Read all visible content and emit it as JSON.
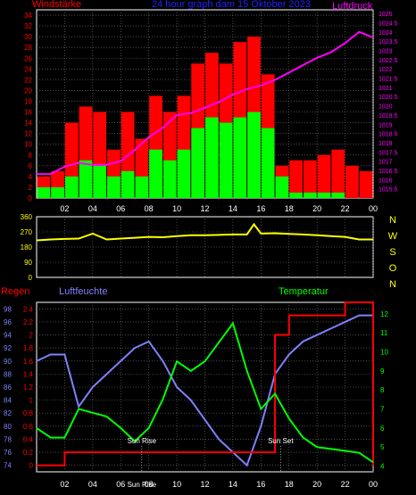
{
  "chart_data": [
    {
      "type": "bar",
      "title": "24 hour graph dam 15 Oktober 2023",
      "left_label": "Windstärke",
      "right_label": "Luftdruck",
      "x_ticks": [
        "02",
        "04",
        "06",
        "08",
        "10",
        "12",
        "14",
        "16",
        "18",
        "20",
        "22",
        "00"
      ],
      "y_left_ticks": [
        "0",
        "2",
        "4",
        "6",
        "8",
        "10",
        "12",
        "14",
        "16",
        "18",
        "20",
        "22",
        "24",
        "26",
        "28",
        "30",
        "32",
        "34"
      ],
      "y_right_ticks": [
        "1015.5",
        "1016",
        "1016.5",
        "1017",
        "1017.5",
        "1018",
        "1018.5",
        "1019",
        "1019.5",
        "1020",
        "1020.5",
        "1021",
        "1021.5",
        "1022",
        "1022.5",
        "1023",
        "1023.5",
        "1024",
        "1024.5",
        "1025"
      ],
      "ylim_left": [
        0,
        35
      ],
      "ylim_right": [
        1015,
        1025.2
      ],
      "colors": {
        "gust": "#ff0000",
        "wind": "#00ff00",
        "pressure": "#ff00ff"
      },
      "series": [
        {
          "name": "Windstärke",
          "type": "bar",
          "x": [
            0,
            1,
            2,
            3,
            4,
            5,
            6,
            7,
            8,
            9,
            10,
            11,
            12,
            13,
            14,
            15,
            16,
            17,
            18,
            19,
            20,
            21,
            22,
            23
          ],
          "gust": [
            4,
            5,
            14,
            17,
            16,
            9,
            16,
            11,
            19,
            16,
            19,
            25,
            27,
            25,
            29,
            30,
            23,
            6,
            7,
            7,
            8,
            9,
            6,
            5
          ],
          "wind": [
            2,
            2,
            4,
            7,
            6,
            4,
            5,
            4,
            9,
            7,
            9,
            13,
            15,
            14,
            15,
            16,
            13,
            4,
            1,
            1,
            1,
            1,
            0,
            0
          ]
        },
        {
          "name": "Luftdruck",
          "type": "line",
          "x": [
            0,
            1,
            2,
            3,
            4,
            5,
            6,
            7,
            8,
            9,
            10,
            11,
            12,
            13,
            14,
            15,
            16,
            17,
            18,
            19,
            20,
            21,
            22,
            23,
            24
          ],
          "values": [
            1016.3,
            1016.3,
            1016.7,
            1016.9,
            1016.8,
            1016.8,
            1017.0,
            1017.6,
            1018.3,
            1018.8,
            1019.5,
            1019.6,
            1019.9,
            1020.2,
            1020.6,
            1020.9,
            1021.1,
            1021.4,
            1021.8,
            1022.2,
            1022.6,
            1022.9,
            1023.4,
            1024.0,
            1023.7
          ]
        }
      ]
    },
    {
      "type": "line",
      "right_labels": [
        "N",
        "W",
        "S",
        "O",
        "N"
      ],
      "y_ticks": [
        "0",
        "90",
        "180",
        "270",
        "360"
      ],
      "x_ticks": [
        "02",
        "04",
        "06",
        "08",
        "10",
        "12",
        "14",
        "16",
        "18",
        "20",
        "22",
        "00"
      ],
      "ylim": [
        0,
        360
      ],
      "color": "#ffff00",
      "series": [
        {
          "name": "Windrichtung",
          "x": [
            0,
            1,
            2,
            3,
            4,
            5,
            6,
            7,
            8,
            9,
            10,
            11,
            12,
            13,
            14,
            15,
            15.5,
            16,
            17,
            18,
            19,
            20,
            21,
            22,
            23,
            24
          ],
          "values": [
            220,
            225,
            228,
            230,
            260,
            225,
            230,
            235,
            240,
            238,
            245,
            250,
            250,
            252,
            255,
            255,
            315,
            260,
            262,
            258,
            255,
            250,
            245,
            240,
            225,
            225
          ]
        }
      ]
    },
    {
      "type": "line",
      "left_title": "Regen",
      "center_title": "Luftfeuchte",
      "right_title": "Temperatur",
      "x_ticks": [
        "02",
        "04",
        "06",
        "08",
        "10",
        "12",
        "14",
        "16",
        "18",
        "20",
        "22",
        "00"
      ],
      "y_left_ticks": [
        "74",
        "76",
        "78",
        "80",
        "82",
        "84",
        "86",
        "88",
        "90",
        "92",
        "94",
        "96",
        "98"
      ],
      "y_rain_ticks": [
        "0",
        "0.2",
        "0.4",
        "0.6",
        "0.8",
        "1",
        "1.2",
        "1.4",
        "1.6",
        "1.8",
        "2",
        "2.2",
        "2.4"
      ],
      "y_right_ticks": [
        "4",
        "5",
        "6",
        "7",
        "8",
        "9",
        "10",
        "11",
        "12"
      ],
      "annotations": [
        "Sun Rise",
        "Sun Set",
        "Sun Rise"
      ],
      "colors": {
        "humidity": "#8080ff",
        "rain": "#ff0000",
        "temperature": "#00ff00"
      },
      "series": [
        {
          "name": "Luftfeuchte",
          "x": [
            0,
            1,
            2,
            3,
            4,
            5,
            6,
            7,
            8,
            9,
            10,
            11,
            12,
            13,
            14,
            15,
            16,
            17,
            18,
            19,
            20,
            21,
            22,
            23,
            24
          ],
          "values": [
            90,
            91,
            91,
            83,
            86,
            88,
            90,
            92,
            93,
            90,
            86,
            84,
            81,
            78,
            76,
            74,
            80,
            88,
            91,
            93,
            94,
            95,
            96,
            97,
            97
          ]
        },
        {
          "name": "Regen",
          "x": [
            0,
            1,
            2,
            3,
            4,
            5,
            6,
            7,
            8,
            9,
            10,
            11,
            12,
            13,
            14,
            15,
            16,
            17,
            18,
            19,
            20,
            21,
            22,
            23,
            24
          ],
          "values": [
            0,
            0,
            0.2,
            0.2,
            0.2,
            0.2,
            0.2,
            0.2,
            0.2,
            0.2,
            0.2,
            0.2,
            0.2,
            0.2,
            0.2,
            0.2,
            0.2,
            2.0,
            2.3,
            2.3,
            2.3,
            2.3,
            2.5,
            2.5,
            0
          ]
        },
        {
          "name": "Temperatur",
          "x": [
            0,
            1,
            2,
            3,
            4,
            5,
            6,
            7,
            8,
            9,
            10,
            11,
            12,
            13,
            14,
            15,
            16,
            17,
            18,
            19,
            20,
            21,
            22,
            23,
            24
          ],
          "values": [
            6.0,
            5.5,
            5.5,
            7.0,
            6.8,
            6.6,
            6.0,
            5.3,
            6.0,
            7.5,
            9.5,
            9.0,
            9.5,
            10.5,
            11.5,
            9.0,
            7.0,
            7.8,
            6.5,
            5.5,
            5.0,
            4.9,
            4.8,
            4.7,
            4.2
          ]
        }
      ]
    }
  ]
}
